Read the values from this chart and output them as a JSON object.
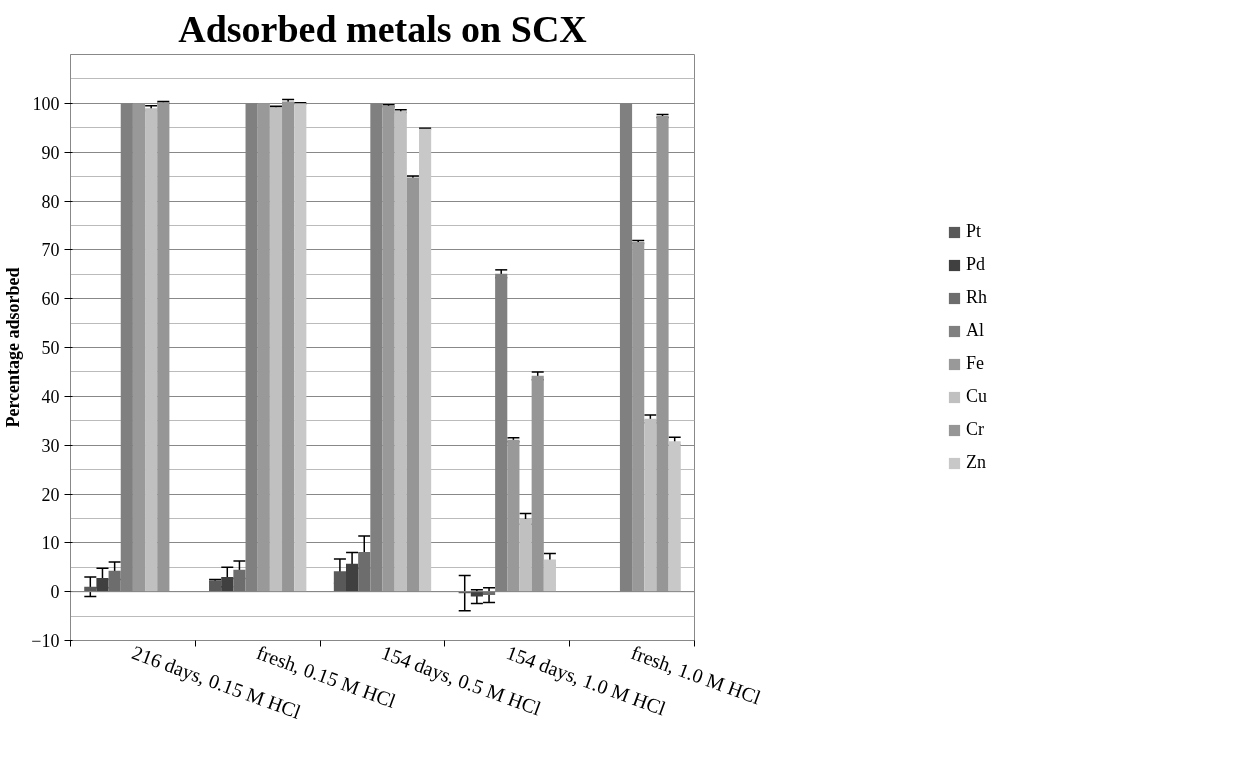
{
  "chart_data": {
    "type": "bar",
    "title": "Adsorbed metals on SCX",
    "ylabel": "Percentage adsorbed",
    "categories": [
      "216 days, 0.15 M HCl",
      "fresh, 0.15 M HCl",
      "154 days, 0.5 M HCl",
      "154 days, 1.0 M HCl",
      "fresh, 1.0 M HCl"
    ],
    "series": [
      {
        "name": "Pt",
        "color": "#595959",
        "values": [
          1,
          2.3,
          4.2,
          -0.3,
          null
        ],
        "errors": [
          2,
          0.2,
          2.5,
          3.6,
          null
        ]
      },
      {
        "name": "Pd",
        "color": "#404040",
        "values": [
          2.8,
          3,
          5.7,
          -1,
          null
        ],
        "errors": [
          2,
          2,
          2.3,
          1.4,
          null
        ]
      },
      {
        "name": "Rh",
        "color": "#6d6d6d",
        "values": [
          4.3,
          4.5,
          8.1,
          -0.7,
          null
        ],
        "errors": [
          1.8,
          1.8,
          3.3,
          1.5,
          null
        ]
      },
      {
        "name": "Al",
        "color": "#808080",
        "values": [
          100,
          100,
          100,
          65.1,
          100
        ],
        "errors": [
          null,
          null,
          null,
          0.8,
          null
        ]
      },
      {
        "name": "Fe",
        "color": "#999999",
        "values": [
          100,
          100,
          99.5,
          31.1,
          71.6
        ],
        "errors": [
          null,
          null,
          0.2,
          0.4,
          0.3
        ]
      },
      {
        "name": "Cu",
        "color": "#c0c0c0",
        "values": [
          99,
          99.2,
          98.4,
          14.9,
          35.4
        ],
        "errors": [
          0.5,
          0.2,
          0.3,
          1.1,
          0.8
        ]
      },
      {
        "name": "Cr",
        "color": "#969696",
        "values": [
          100.2,
          100.4,
          84.8,
          44.2,
          97.4
        ],
        "errors": [
          0.2,
          0.4,
          0.3,
          0.8,
          0.3
        ]
      },
      {
        "name": "Zn",
        "color": "#c8c8c8",
        "values": [
          null,
          100,
          94.8,
          6.6,
          30.8
        ],
        "errors": [
          null,
          0.1,
          0.1,
          1.2,
          0.8
        ]
      }
    ],
    "ylim": [
      -10,
      110
    ],
    "yticks": [
      -10,
      0,
      10,
      20,
      30,
      40,
      50,
      60,
      70,
      80,
      90,
      100
    ],
    "grid": "y",
    "legend": "right"
  }
}
